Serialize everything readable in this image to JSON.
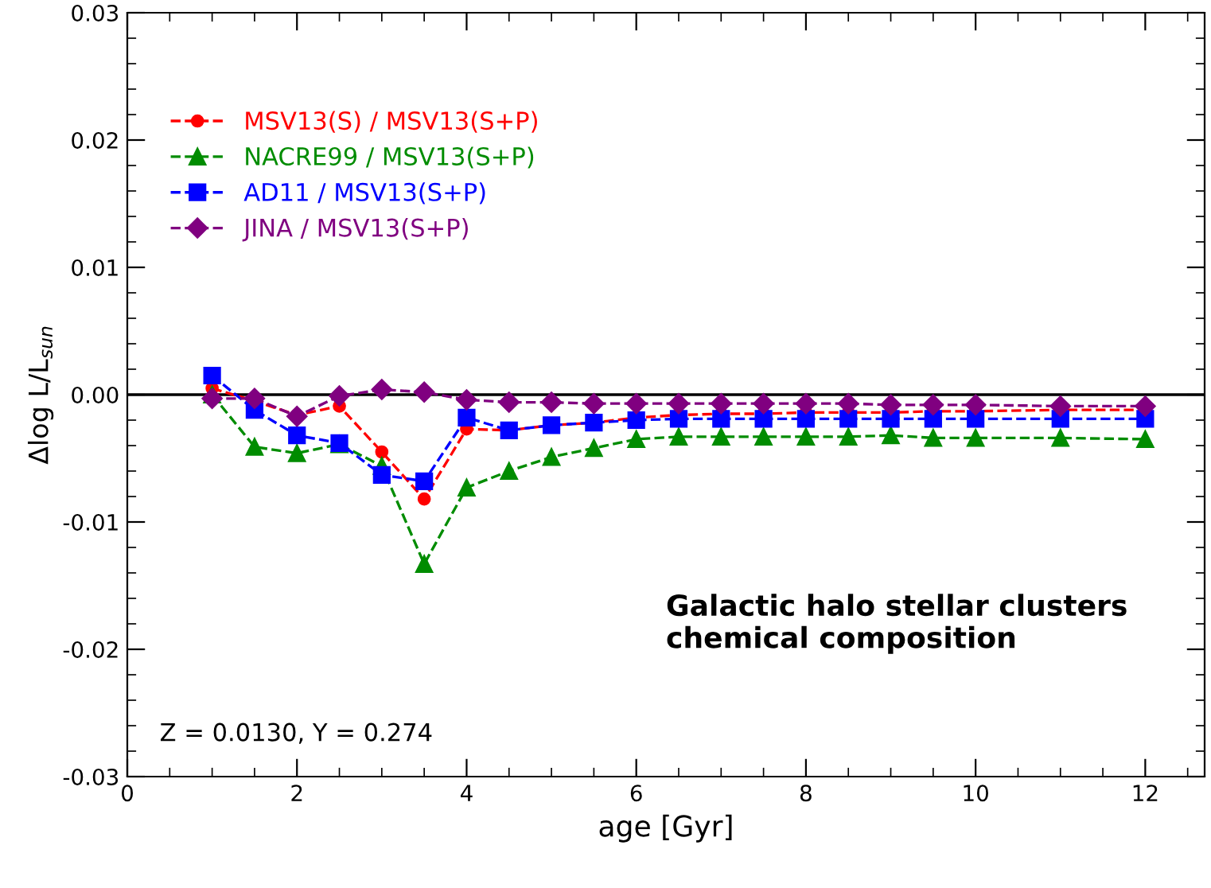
{
  "chart_data": {
    "type": "line",
    "xlabel": "age [Gyr]",
    "ylabel": "Δlog L/L$_{sun}$",
    "x": [
      1,
      1.5,
      2,
      2.5,
      3,
      3.5,
      4,
      4.5,
      5,
      5.5,
      6,
      6.5,
      7,
      7.5,
      8,
      8.5,
      9,
      9.5,
      10,
      11,
      12
    ],
    "series": [
      {
        "name": "MSV13(S) / MSV13(S+P)",
        "color": "#ff0000",
        "marker": "circle",
        "values": [
          0.0005,
          -0.0005,
          -0.0016,
          -0.0009,
          -0.0045,
          -0.0082,
          -0.0027,
          -0.0028,
          -0.0024,
          -0.0022,
          -0.0018,
          -0.0016,
          -0.0015,
          -0.0015,
          -0.0014,
          -0.0014,
          -0.0014,
          -0.0013,
          -0.0013,
          -0.0012,
          -0.0012
        ]
      },
      {
        "name": "NACRE99 / MSV13(S+P)",
        "color": "#008c00",
        "marker": "triangle",
        "values": [
          0.0,
          -0.0041,
          -0.0046,
          -0.0039,
          -0.0056,
          -0.0133,
          -0.0073,
          -0.006,
          -0.0049,
          -0.0042,
          -0.0035,
          -0.0033,
          -0.0033,
          -0.0033,
          -0.0033,
          -0.0033,
          -0.0032,
          -0.0034,
          -0.0034,
          -0.0034,
          -0.0035
        ]
      },
      {
        "name": "AD11 / MSV13(S+P)",
        "color": "#0000ff",
        "marker": "square",
        "values": [
          0.0015,
          -0.0012,
          -0.0032,
          -0.0038,
          -0.0063,
          -0.0068,
          -0.0018,
          -0.0028,
          -0.0024,
          -0.0022,
          -0.002,
          -0.0019,
          -0.0019,
          -0.0019,
          -0.0019,
          -0.0019,
          -0.0019,
          -0.0019,
          -0.0019,
          -0.0019,
          -0.0019
        ]
      },
      {
        "name": "JINA / MSV13(S+P)",
        "color": "#800080",
        "marker": "diamond",
        "values": [
          -0.0003,
          -0.0003,
          -0.0017,
          -0.0001,
          0.0004,
          0.0002,
          -0.0004,
          -0.0006,
          -0.0006,
          -0.0007,
          -0.0007,
          -0.0007,
          -0.0007,
          -0.0007,
          -0.0007,
          -0.0007,
          -0.0008,
          -0.0008,
          -0.0008,
          -0.0009,
          -0.0009
        ]
      }
    ],
    "line_style": "dashed",
    "xlim": [
      0,
      12.7
    ],
    "xticks": [
      0,
      2,
      4,
      6,
      8,
      10,
      12
    ],
    "ylim": [
      -0.03,
      0.03
    ],
    "yticks": [
      {
        "value": -0.03,
        "label": "-0.03"
      },
      {
        "value": -0.02,
        "label": "-0.02"
      },
      {
        "value": -0.01,
        "label": "-0.01"
      },
      {
        "value": 0,
        "label": "0.00"
      },
      {
        "value": 0.01,
        "label": "0.01"
      },
      {
        "value": 0.02,
        "label": "0.02"
      },
      {
        "value": 0.03,
        "label": "0.03"
      }
    ],
    "ref_lines": [
      {
        "axis": "y",
        "value": 0,
        "color": "#000000",
        "line_style": "solid"
      }
    ],
    "annotations": [
      "Galactic halo stellar clusters\nchemical composition",
      "Z = 0.0130, Y = 0.274"
    ],
    "legend": "top left",
    "grid": false
  }
}
